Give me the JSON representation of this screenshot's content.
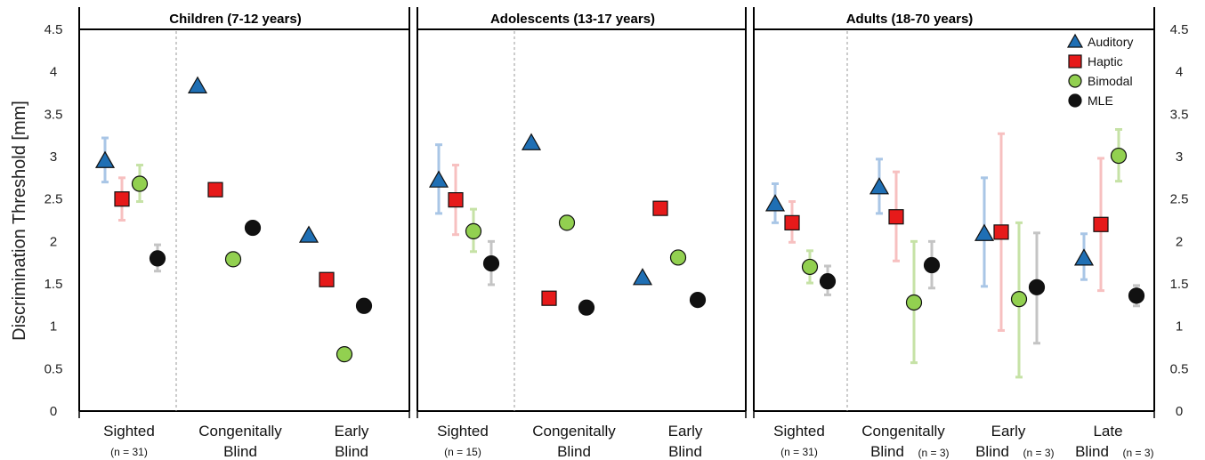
{
  "chart_data": {
    "type": "scatter",
    "ylabel": "Discrimination Threshold  [mm]",
    "ylim": [
      0,
      4.5
    ],
    "yticks": [
      "0",
      "0.5",
      "1",
      "1.5",
      "2",
      "2.5",
      "3",
      "3.5",
      "4",
      "4.5"
    ],
    "legend": {
      "placement": "top-right",
      "entries": [
        {
          "name": "Auditory",
          "marker": "triangle",
          "color": "#1f6fb4"
        },
        {
          "name": "Haptic",
          "marker": "square",
          "color": "#e61a1a"
        },
        {
          "name": "Bimodal",
          "marker": "circle",
          "color": "#92d050"
        },
        {
          "name": "MLE",
          "marker": "circle",
          "color": "#111111"
        }
      ]
    },
    "error_colors": {
      "Auditory": "#a9c6e6",
      "Haptic": "#f7c0c0",
      "Bimodal": "#c6e2a6",
      "MLE": "#c4c4c4"
    },
    "panels": [
      {
        "title": "Children (7-12 years)",
        "groups": [
          {
            "label": [
              "Sighted"
            ],
            "n": "(n = 31)",
            "values": {
              "Auditory": 2.95,
              "Haptic": 2.5,
              "Bimodal": 2.68,
              "MLE": 1.8
            },
            "errors": {
              "Auditory": [
                2.7,
                3.22
              ],
              "Haptic": [
                2.25,
                2.75
              ],
              "Bimodal": [
                2.47,
                2.9
              ],
              "MLE": [
                1.65,
                1.96
              ]
            }
          },
          {
            "label": [
              "Congenitally",
              "Blind"
            ],
            "n": "",
            "values": {
              "Auditory": 3.83,
              "Haptic": 2.61,
              "Bimodal": 1.79,
              "MLE": 2.16
            }
          },
          {
            "label": [
              "Early",
              "Blind"
            ],
            "n": "",
            "values": {
              "Auditory": 2.07,
              "Haptic": 1.55,
              "Bimodal": 0.67,
              "MLE": 1.24
            }
          }
        ]
      },
      {
        "title": "Adolescents (13-17 years)",
        "groups": [
          {
            "label": [
              "Sighted"
            ],
            "n": "(n = 15)",
            "values": {
              "Auditory": 2.72,
              "Haptic": 2.49,
              "Bimodal": 2.12,
              "MLE": 1.74
            },
            "errors": {
              "Auditory": [
                2.33,
                3.14
              ],
              "Haptic": [
                2.08,
                2.9
              ],
              "Bimodal": [
                1.88,
                2.38
              ],
              "MLE": [
                1.49,
                2.0
              ]
            }
          },
          {
            "label": [
              "Congenitally",
              "Blind"
            ],
            "n": "",
            "values": {
              "Auditory": 3.16,
              "Haptic": 1.33,
              "Bimodal": 2.22,
              "MLE": 1.22
            }
          },
          {
            "label": [
              "Early",
              "Blind"
            ],
            "n": "",
            "values": {
              "Auditory": 1.57,
              "Haptic": 2.39,
              "Bimodal": 1.81,
              "MLE": 1.31
            }
          }
        ]
      },
      {
        "title": "Adults (18-70 years)",
        "groups": [
          {
            "label": [
              "Sighted"
            ],
            "n": "(n = 31)",
            "values": {
              "Auditory": 2.44,
              "Haptic": 2.22,
              "Bimodal": 1.7,
              "MLE": 1.53
            },
            "errors": {
              "Auditory": [
                2.22,
                2.68
              ],
              "Haptic": [
                1.99,
                2.47
              ],
              "Bimodal": [
                1.51,
                1.89
              ],
              "MLE": [
                1.37,
                1.71
              ]
            }
          },
          {
            "label": [
              "Congenitally",
              "Blind"
            ],
            "n": "(n = 3)",
            "values": {
              "Auditory": 2.64,
              "Haptic": 2.29,
              "Bimodal": 1.28,
              "MLE": 1.72
            },
            "errors": {
              "Auditory": [
                2.33,
                2.97
              ],
              "Haptic": [
                1.77,
                2.82
              ],
              "Bimodal": [
                0.57,
                2.0
              ],
              "MLE": [
                1.45,
                2.0
              ]
            }
          },
          {
            "label": [
              "Early",
              "Blind"
            ],
            "n": "(n = 3)",
            "values": {
              "Auditory": 2.09,
              "Haptic": 2.11,
              "Bimodal": 1.32,
              "MLE": 1.46
            },
            "errors": {
              "Auditory": [
                1.47,
                2.75
              ],
              "Haptic": [
                0.95,
                3.27
              ],
              "Bimodal": [
                0.4,
                2.22
              ],
              "MLE": [
                0.8,
                2.1
              ]
            }
          },
          {
            "label": [
              "Late",
              "Blind"
            ],
            "n": "(n = 3)",
            "values": {
              "Auditory": 1.8,
              "Haptic": 2.2,
              "Bimodal": 3.01,
              "MLE": 1.36
            },
            "errors": {
              "Auditory": [
                1.55,
                2.09
              ],
              "Haptic": [
                1.42,
                2.98
              ],
              "Bimodal": [
                2.71,
                3.32
              ],
              "MLE": [
                1.24,
                1.48
              ]
            }
          }
        ]
      }
    ]
  }
}
